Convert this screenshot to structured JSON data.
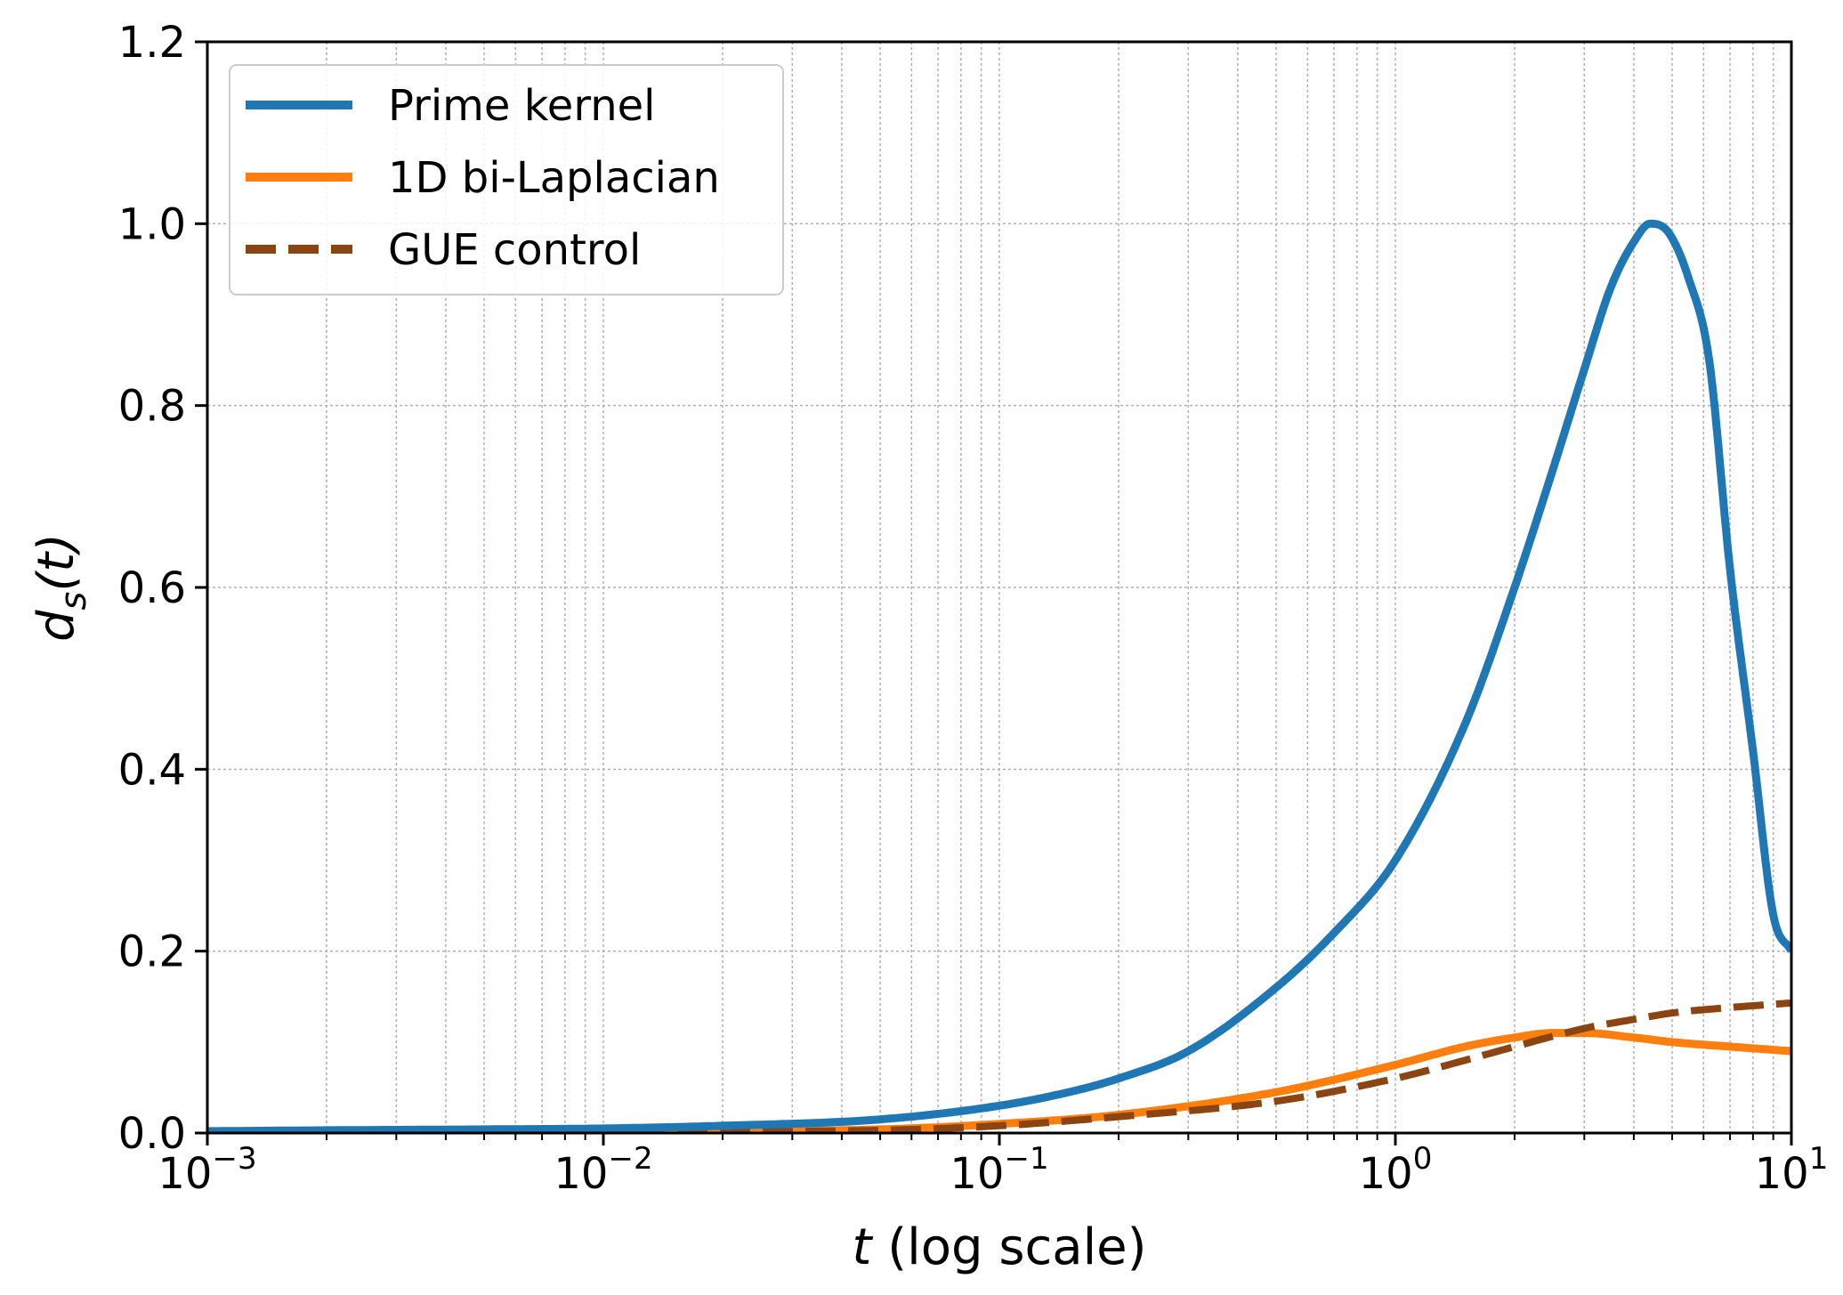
{
  "chart_data": {
    "type": "line",
    "title": "",
    "xlabel_var": "t",
    "xlabel_rest": " (log scale)",
    "ylabel_main": "d",
    "ylabel_sub": "s",
    "ylabel_arg": "(t)",
    "xscale": "log",
    "xlim": [
      0.001,
      10
    ],
    "ylim": [
      0.0,
      1.2
    ],
    "x_ticks": [
      {
        "value": 0.001,
        "base": "10",
        "exp": "−3"
      },
      {
        "value": 0.01,
        "base": "10",
        "exp": "−2"
      },
      {
        "value": 0.1,
        "base": "10",
        "exp": "−1"
      },
      {
        "value": 1,
        "base": "10",
        "exp": "0"
      },
      {
        "value": 10,
        "base": "10",
        "exp": "1"
      }
    ],
    "y_ticks": [
      {
        "value": 0.0,
        "label": "0.0"
      },
      {
        "value": 0.2,
        "label": "0.2"
      },
      {
        "value": 0.4,
        "label": "0.4"
      },
      {
        "value": 0.6,
        "label": "0.6"
      },
      {
        "value": 0.8,
        "label": "0.8"
      },
      {
        "value": 1.0,
        "label": "1.0"
      },
      {
        "value": 1.2,
        "label": "1.2"
      }
    ],
    "grid": true,
    "legend_position": "top-left",
    "series": [
      {
        "name": "Prime kernel",
        "color": "#1f77b4",
        "style": "solid",
        "x": [
          0.001,
          0.002,
          0.005,
          0.01,
          0.02,
          0.05,
          0.1,
          0.15,
          0.2,
          0.3,
          0.5,
          0.7,
          1.0,
          1.5,
          2.0,
          2.5,
          3.0,
          3.5,
          4.0,
          4.4,
          4.9,
          5.5,
          6.2,
          7.0,
          8.0,
          9.0,
          10.0
        ],
        "y": [
          0.002,
          0.003,
          0.004,
          0.005,
          0.008,
          0.015,
          0.03,
          0.045,
          0.06,
          0.09,
          0.16,
          0.22,
          0.3,
          0.45,
          0.6,
          0.73,
          0.84,
          0.93,
          0.98,
          1.0,
          0.99,
          0.94,
          0.85,
          0.62,
          0.42,
          0.24,
          0.2
        ]
      },
      {
        "name": "1D bi-Laplacian",
        "color": "#ff7f0e",
        "style": "solid",
        "x": [
          0.001,
          0.01,
          0.05,
          0.1,
          0.2,
          0.5,
          1.0,
          1.5,
          2.0,
          2.5,
          3.0,
          4.0,
          5.0,
          7.0,
          10.0
        ],
        "y": [
          0.0,
          0.001,
          0.004,
          0.01,
          0.02,
          0.045,
          0.075,
          0.095,
          0.105,
          0.11,
          0.11,
          0.105,
          0.1,
          0.095,
          0.09
        ]
      },
      {
        "name": "GUE control",
        "color": "#8b4513",
        "style": "dashed",
        "x": [
          0.001,
          0.01,
          0.05,
          0.1,
          0.2,
          0.5,
          1.0,
          1.5,
          2.0,
          3.0,
          4.0,
          5.0,
          7.0,
          10.0
        ],
        "y": [
          0.0,
          0.001,
          0.003,
          0.008,
          0.018,
          0.035,
          0.06,
          0.08,
          0.095,
          0.115,
          0.125,
          0.132,
          0.138,
          0.143
        ]
      }
    ]
  }
}
